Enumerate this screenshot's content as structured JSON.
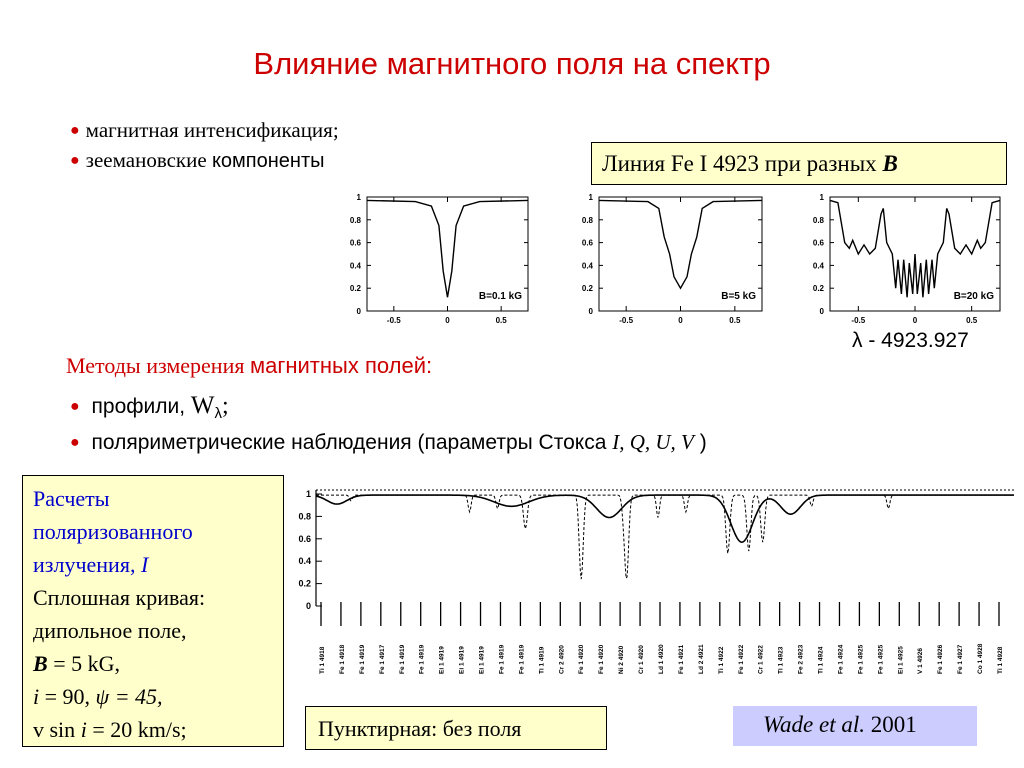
{
  "title": "Влияние магнитного поля на спектр",
  "bullets_top": [
    {
      "prefix": "магнитная интенсификация;",
      "suffix": ""
    },
    {
      "prefix": "зеемановские ",
      "suffix": "компоненты"
    }
  ],
  "fe_box": {
    "text": "Линия Fe I 4923 при разных ",
    "bold": "B"
  },
  "lambda_label": "λ - 4923.927",
  "methods": {
    "serif_part": "Методы измерения ",
    "sans_part": "магнитных полей:"
  },
  "bullets_methods": [
    {
      "text": "профили, ",
      "w": "W",
      "sub": "λ",
      "tail": ";"
    },
    {
      "text": "поляриметрические наблюдения (параметры Стокса ",
      "params": "I, Q, U, V",
      "tail": " )"
    }
  ],
  "calc_box": {
    "line1": "Расчеты",
    "line2": "поляризованного",
    "line3": "излучения, ",
    "line3_i": "I",
    "line4": "Сплошная кривая:",
    "line5": "дипольное поле,",
    "line6_b": "B",
    "line6": " = 5 kG,",
    "line7_i": "i",
    "line7": " = 90, ",
    "line7_psi": "ψ = 45,",
    "line8a": "v sin ",
    "line8_i": "i",
    "line8b": " = 20 km/s;"
  },
  "dashed_box": "Пунктирная: без поля",
  "wade_box": {
    "italic": "Wade et al.",
    "year": " 2001"
  },
  "chart_data": [
    {
      "type": "line",
      "label": "B=0.1 kG",
      "xlim": [
        -0.75,
        0.75
      ],
      "ylim": [
        0,
        1
      ],
      "xticks": [
        "-0.5",
        "0",
        "0.5"
      ],
      "yticks": [
        "0",
        "0.2",
        "0.4",
        "0.6",
        "0.8",
        "1"
      ],
      "x": [
        -0.75,
        -0.3,
        -0.15,
        -0.08,
        -0.04,
        0,
        0.04,
        0.08,
        0.15,
        0.3,
        0.75
      ],
      "y": [
        0.97,
        0.96,
        0.92,
        0.75,
        0.35,
        0.12,
        0.35,
        0.75,
        0.92,
        0.96,
        0.97
      ]
    },
    {
      "type": "line",
      "label": "B=5 kG",
      "xlim": [
        -0.75,
        0.75
      ],
      "ylim": [
        0,
        1
      ],
      "xticks": [
        "-0.5",
        "0",
        "0.5"
      ],
      "yticks": [
        "0",
        "0.2",
        "0.4",
        "0.6",
        "0.8",
        "1"
      ],
      "x": [
        -0.75,
        -0.3,
        -0.2,
        -0.15,
        -0.1,
        -0.06,
        0,
        0.06,
        0.1,
        0.15,
        0.2,
        0.3,
        0.75
      ],
      "y": [
        0.97,
        0.96,
        0.9,
        0.65,
        0.5,
        0.3,
        0.2,
        0.3,
        0.5,
        0.65,
        0.9,
        0.96,
        0.97
      ]
    },
    {
      "type": "line",
      "label": "B=20 kG",
      "xlim": [
        -0.75,
        0.75
      ],
      "ylim": [
        0,
        1
      ],
      "xticks": [
        "-0.5",
        "0",
        "0.5"
      ],
      "yticks": [
        "0",
        "0.2",
        "0.4",
        "0.6",
        "0.8",
        "1"
      ],
      "x": [
        -0.75,
        -0.68,
        -0.62,
        -0.58,
        -0.55,
        -0.5,
        -0.45,
        -0.4,
        -0.35,
        -0.3,
        -0.28,
        -0.25,
        -0.2,
        -0.17,
        -0.15,
        -0.12,
        -0.1,
        -0.07,
        -0.05,
        -0.02,
        0,
        0.02,
        0.05,
        0.07,
        0.1,
        0.12,
        0.15,
        0.17,
        0.2,
        0.25,
        0.28,
        0.3,
        0.35,
        0.4,
        0.45,
        0.5,
        0.55,
        0.58,
        0.62,
        0.68,
        0.75
      ],
      "y": [
        0.97,
        0.95,
        0.6,
        0.55,
        0.62,
        0.5,
        0.58,
        0.5,
        0.55,
        0.85,
        0.9,
        0.6,
        0.5,
        0.2,
        0.45,
        0.15,
        0.45,
        0.12,
        0.42,
        0.15,
        0.5,
        0.15,
        0.42,
        0.12,
        0.45,
        0.15,
        0.45,
        0.2,
        0.5,
        0.6,
        0.9,
        0.85,
        0.55,
        0.5,
        0.58,
        0.5,
        0.62,
        0.55,
        0.6,
        0.95,
        0.97
      ]
    },
    {
      "type": "line",
      "ylim": [
        0,
        1
      ],
      "yticks": [
        "0",
        "0.2",
        "0.4",
        "0.6",
        "0.8",
        "1"
      ],
      "series": [
        {
          "style": "solid",
          "dips": [
            [
              0.08,
              0.03,
              0.02
            ],
            [
              0.1,
              0.28,
              0.035
            ],
            [
              0.2,
              0.42,
              0.025
            ],
            [
              0.42,
              0.61,
              0.022
            ],
            [
              0.17,
              0.68,
              0.02
            ]
          ]
        },
        {
          "style": "dashed",
          "dips": [
            [
              0.05,
              0.05,
              0.003
            ],
            [
              0.15,
              0.22,
              0.003
            ],
            [
              0.3,
              0.3,
              0.004
            ],
            [
              0.12,
              0.26,
              0.003
            ],
            [
              0.75,
              0.38,
              0.004
            ],
            [
              0.12,
              0.44,
              0.003
            ],
            [
              0.75,
              0.445,
              0.004
            ],
            [
              0.2,
              0.49,
              0.003
            ],
            [
              0.15,
              0.53,
              0.003
            ],
            [
              0.52,
              0.59,
              0.004
            ],
            [
              0.5,
              0.62,
              0.004
            ],
            [
              0.42,
              0.64,
              0.004
            ],
            [
              0.1,
              0.71,
              0.003
            ],
            [
              0.12,
              0.82,
              0.003
            ]
          ]
        }
      ],
      "line_labels": [
        "Ti 1 4918",
        "Fe 1 4918",
        "Fe 1 4919",
        "Fe 1 4917",
        "Fe 1 4919",
        "Fe 1 4919",
        "Ei 1 4919",
        "Ei 1 4919",
        "Ei 1 4919",
        "Fe 1 4919",
        "Fe 1 4919",
        "Ti 1 4919",
        "Cr 2 4920",
        "Fe 1 4920",
        "Fe 1 4920",
        "Ni 2 4920",
        "Cr 1 4920",
        "Ld 1 4920",
        "Fe 1 4921",
        "Ld 2 4921",
        "Ti 1 4922",
        "Fe 1 4922",
        "Cr 1 4922",
        "Ti 1 4923",
        "Fe 2 4923",
        "Ti 1 4924",
        "Fe 1 4924",
        "Fe 1 4925",
        "Fe 1 4925",
        "Ei 1 4925",
        "V 1 4926",
        "Fe 1 4926",
        "Fe 1 4927",
        "Co 1 4928",
        "Ti 1 4928"
      ]
    }
  ]
}
